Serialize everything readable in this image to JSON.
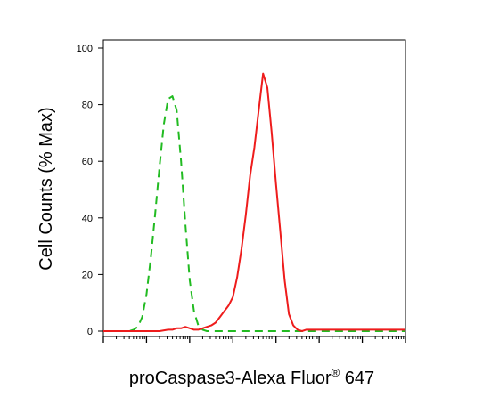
{
  "chart_data": {
    "type": "line",
    "title": "",
    "xlabel": "proCaspase3-Alexa Fluor",
    "xlabel_superscript": "®",
    "xlabel_suffix": " 647",
    "ylabel": "Cell Counts (% Max)",
    "ylim": [
      0,
      100
    ],
    "yticks": [
      0,
      20,
      40,
      60,
      80,
      100
    ],
    "xscale": "log",
    "xlim": [
      10,
      100000000
    ],
    "grid": false,
    "legend": "none",
    "series": [
      {
        "style": "dashed",
        "color": "#22bb22",
        "x": [
          10,
          12.6,
          15.8,
          20,
          25.1,
          31.6,
          39.8,
          50.1,
          63.1,
          79.4,
          100,
          126,
          158,
          200,
          251,
          316,
          398,
          501,
          631,
          794,
          1000,
          1259,
          1585,
          2000,
          2512,
          3162,
          3981,
          5012,
          6310,
          7943,
          10000,
          100000,
          1000000,
          10000000,
          100000000
        ],
        "y": [
          0,
          0,
          0,
          0,
          0,
          0,
          0,
          0.5,
          1.5,
          5,
          13,
          26,
          41,
          58,
          73,
          82,
          83,
          78,
          60,
          38,
          18,
          7,
          2,
          0.5,
          0,
          0,
          0,
          0,
          0,
          0,
          0,
          0,
          0,
          0,
          0
        ]
      },
      {
        "style": "solid",
        "color": "#ee1c1c",
        "x": [
          10,
          100,
          200,
          316,
          398,
          501,
          631,
          794,
          1000,
          1259,
          1585,
          2000,
          2512,
          3162,
          3981,
          5012,
          6310,
          7943,
          10000,
          12589,
          15849,
          19953,
          25119,
          31623,
          39811,
          50119,
          63096,
          79433,
          100000,
          125893,
          158489,
          199526,
          251189,
          316228,
          398107,
          501187,
          1000000,
          10000000,
          100000000
        ],
        "y": [
          0,
          0,
          0,
          0.5,
          0.5,
          1,
          1,
          1.5,
          1,
          0.5,
          0.5,
          1,
          1.5,
          2,
          3,
          5,
          7,
          9,
          12,
          19,
          29,
          41,
          55,
          65,
          78,
          91,
          86,
          70,
          52,
          35,
          18,
          6,
          2,
          0.5,
          0,
          0.5,
          0.5,
          0.5,
          0.5
        ]
      }
    ]
  }
}
